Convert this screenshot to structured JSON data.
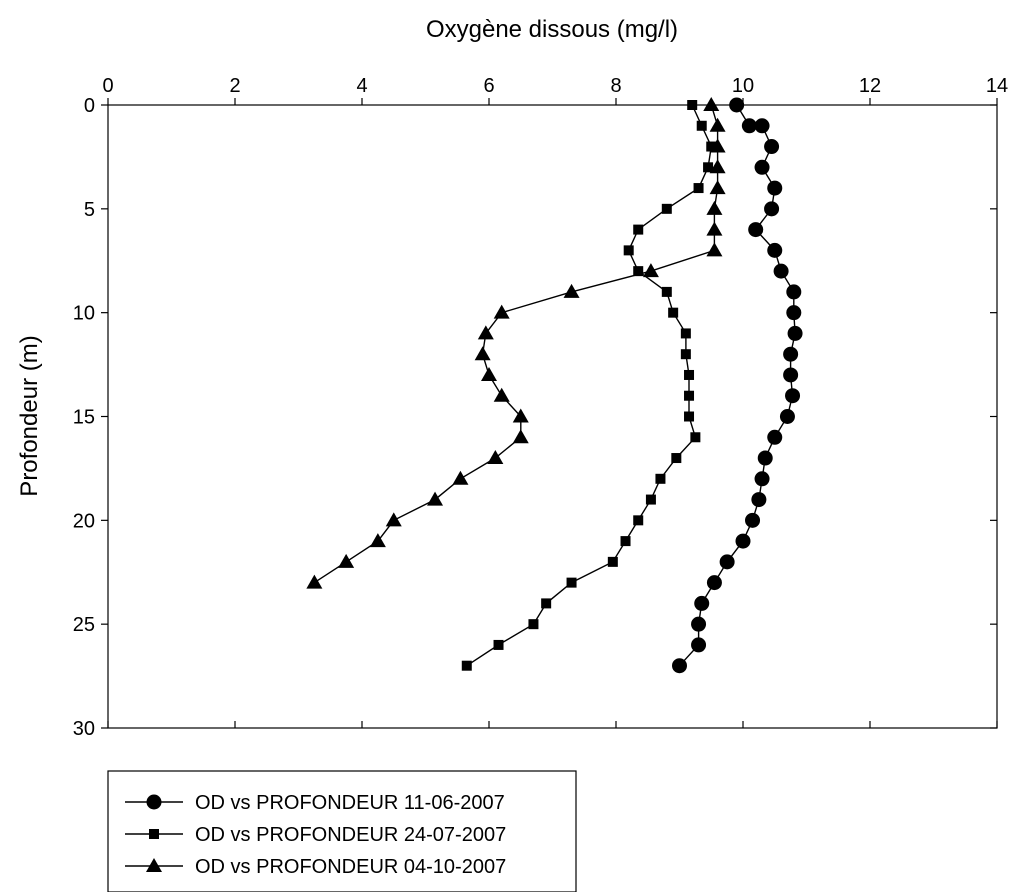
{
  "chart_data": {
    "type": "line",
    "title": "",
    "xlabel": "Oxygène dissous (mg/l)",
    "ylabel": "Profondeur (m)",
    "xlim": [
      0,
      14
    ],
    "ylim": [
      30,
      0
    ],
    "x_axis_position": "top",
    "y_axis_inverted": true,
    "x_ticks": [
      "0",
      "2",
      "4",
      "6",
      "8",
      "10",
      "12",
      "14"
    ],
    "y_ticks": [
      "0",
      "5",
      "10",
      "15",
      "20",
      "25",
      "30"
    ],
    "grid": false,
    "legend_position": "bottom-left",
    "series": [
      {
        "name": "OD vs PROFONDEUR 11-06-2007",
        "marker": "circle",
        "color": "#000000",
        "points": [
          [
            9.9,
            0
          ],
          [
            10.1,
            1
          ],
          [
            10.3,
            1
          ],
          [
            10.45,
            2
          ],
          [
            10.3,
            3
          ],
          [
            10.5,
            4
          ],
          [
            10.45,
            5
          ],
          [
            10.2,
            6
          ],
          [
            10.5,
            7
          ],
          [
            10.6,
            8
          ],
          [
            10.8,
            9
          ],
          [
            10.8,
            10
          ],
          [
            10.82,
            11
          ],
          [
            10.75,
            12
          ],
          [
            10.75,
            13
          ],
          [
            10.78,
            14
          ],
          [
            10.7,
            15
          ],
          [
            10.5,
            16
          ],
          [
            10.35,
            17
          ],
          [
            10.3,
            18
          ],
          [
            10.25,
            19
          ],
          [
            10.15,
            20
          ],
          [
            10.0,
            21
          ],
          [
            9.75,
            22
          ],
          [
            9.55,
            23
          ],
          [
            9.35,
            24
          ],
          [
            9.3,
            25
          ],
          [
            9.3,
            26
          ],
          [
            9.0,
            27
          ]
        ]
      },
      {
        "name": "OD vs PROFONDEUR 24-07-2007",
        "marker": "square",
        "color": "#000000",
        "points": [
          [
            9.2,
            0
          ],
          [
            9.35,
            1
          ],
          [
            9.5,
            2
          ],
          [
            9.45,
            3
          ],
          [
            9.3,
            4
          ],
          [
            8.8,
            5
          ],
          [
            8.35,
            6
          ],
          [
            8.2,
            7
          ],
          [
            8.35,
            8
          ],
          [
            8.8,
            9
          ],
          [
            8.9,
            10
          ],
          [
            9.1,
            11
          ],
          [
            9.1,
            12
          ],
          [
            9.15,
            13
          ],
          [
            9.15,
            14
          ],
          [
            9.15,
            15
          ],
          [
            9.25,
            16
          ],
          [
            8.95,
            17
          ],
          [
            8.7,
            18
          ],
          [
            8.55,
            19
          ],
          [
            8.35,
            20
          ],
          [
            8.15,
            21
          ],
          [
            7.95,
            22
          ],
          [
            7.3,
            23
          ],
          [
            6.9,
            24
          ],
          [
            6.7,
            25
          ],
          [
            6.15,
            26
          ],
          [
            5.65,
            27
          ]
        ]
      },
      {
        "name": "OD vs PROFONDEUR 04-10-2007",
        "marker": "triangle",
        "color": "#000000",
        "points": [
          [
            9.5,
            0
          ],
          [
            9.6,
            1
          ],
          [
            9.6,
            2
          ],
          [
            9.6,
            3
          ],
          [
            9.6,
            4
          ],
          [
            9.55,
            5
          ],
          [
            9.55,
            6
          ],
          [
            9.55,
            7
          ],
          [
            8.55,
            8
          ],
          [
            7.3,
            9
          ],
          [
            6.2,
            10
          ],
          [
            5.95,
            11
          ],
          [
            5.9,
            12
          ],
          [
            6.0,
            13
          ],
          [
            6.2,
            14
          ],
          [
            6.5,
            15
          ],
          [
            6.5,
            16
          ],
          [
            6.1,
            17
          ],
          [
            5.55,
            18
          ],
          [
            5.15,
            19
          ],
          [
            4.5,
            20
          ],
          [
            4.25,
            21
          ],
          [
            3.75,
            22
          ],
          [
            3.25,
            23
          ]
        ]
      }
    ]
  }
}
